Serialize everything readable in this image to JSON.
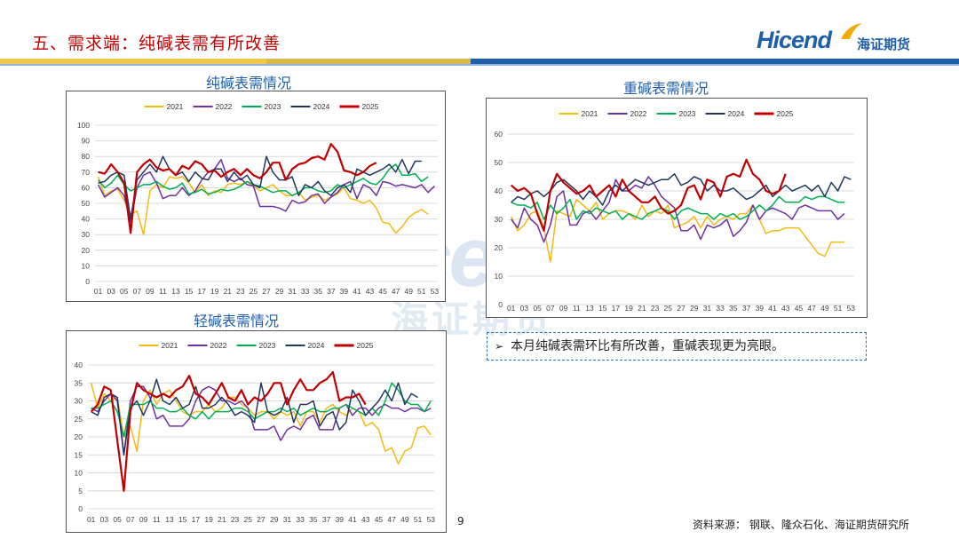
{
  "header": {
    "title": "五、需求端：纯碱表需有所改善",
    "logo_en": "Hicend",
    "logo_cn": "海证期货"
  },
  "watermark": {
    "en": "Hicend",
    "cn": "海证期货"
  },
  "colors": {
    "title_red": "#c00000",
    "brand_blue": "#1f5faa",
    "s2021": "#f4b913",
    "s2022": "#7030a0",
    "s2023": "#00b050",
    "s2024": "#1f3864",
    "s2025": "#c00000"
  },
  "note": {
    "bullet": "➢",
    "text": "本月纯碱表需环比有所改善，重碱表现更为亮眼。"
  },
  "page_number": "9",
  "source": "资料来源：  钢联、隆众石化、海证期货研究所",
  "chart_data": [
    {
      "id": "soda",
      "type": "line",
      "title": "纯碱表需情况",
      "ylim": [
        0,
        100
      ],
      "yticks": [
        0,
        10,
        20,
        30,
        40,
        50,
        60,
        70,
        80,
        90,
        100
      ],
      "x": [
        "01",
        "02",
        "03",
        "04",
        "05",
        "06",
        "07",
        "08",
        "09",
        "10",
        "11",
        "12",
        "13",
        "14",
        "15",
        "16",
        "17",
        "18",
        "19",
        "20",
        "21",
        "22",
        "23",
        "24",
        "25",
        "26",
        "27",
        "28",
        "29",
        "30",
        "31",
        "32",
        "33",
        "34",
        "35",
        "36",
        "37",
        "38",
        "39",
        "40",
        "41",
        "42",
        "43",
        "44",
        "45",
        "46",
        "47",
        "48",
        "49",
        "50",
        "51",
        "52",
        "53"
      ],
      "xtick_every": 2,
      "series": [
        {
          "name": "2021",
          "color": "#f4b913",
          "values": [
            67,
            55,
            58,
            59,
            52,
            43,
            45,
            30,
            58,
            62,
            60,
            67,
            66,
            67,
            63,
            57,
            62,
            55,
            58,
            57,
            62,
            63,
            62,
            64,
            61,
            58,
            60,
            62,
            58,
            55,
            55,
            57,
            52,
            54,
            55,
            52,
            54,
            56,
            60,
            53,
            52,
            50,
            52,
            47,
            38,
            37,
            31,
            35,
            41,
            44,
            46,
            43,
            null
          ]
        },
        {
          "name": "2022",
          "color": "#7030a0",
          "values": [
            62,
            54,
            57,
            60,
            55,
            38,
            60,
            68,
            70,
            63,
            53,
            55,
            55,
            60,
            55,
            58,
            65,
            70,
            72,
            78,
            66,
            64,
            66,
            62,
            61,
            48,
            48,
            48,
            47,
            45,
            52,
            50,
            51,
            55,
            56,
            50,
            54,
            57,
            62,
            64,
            53,
            62,
            60,
            55,
            64,
            63,
            61,
            62,
            61,
            60,
            62,
            57,
            61
          ]
        },
        {
          "name": "2023",
          "color": "#00b050",
          "values": [
            65,
            60,
            63,
            68,
            62,
            58,
            60,
            62,
            62,
            64,
            61,
            59,
            60,
            63,
            56,
            57,
            59,
            56,
            57,
            59,
            58,
            59,
            61,
            64,
            62,
            61,
            59,
            57,
            58,
            58,
            55,
            57,
            60,
            60,
            58,
            57,
            58,
            62,
            60,
            62,
            64,
            66,
            63,
            62,
            66,
            72,
            75,
            68,
            68,
            69,
            64,
            67,
            null
          ]
        },
        {
          "name": "2024",
          "color": "#1f3864",
          "values": [
            63,
            64,
            68,
            70,
            68,
            40,
            65,
            70,
            75,
            70,
            80,
            72,
            68,
            70,
            64,
            70,
            66,
            65,
            72,
            72,
            64,
            70,
            65,
            68,
            62,
            60,
            80,
            70,
            65,
            65,
            67,
            55,
            62,
            60,
            64,
            58,
            55,
            60,
            62,
            57,
            72,
            70,
            68,
            70,
            72,
            75,
            70,
            78,
            69,
            77,
            77,
            null,
            null
          ]
        },
        {
          "name": "2025",
          "color": "#c00000",
          "values": [
            70,
            69,
            75,
            70,
            63,
            31,
            70,
            75,
            78,
            73,
            71,
            72,
            68,
            74,
            72,
            77,
            75,
            70,
            71,
            67,
            70,
            72,
            68,
            72,
            68,
            66,
            70,
            76,
            76,
            65,
            72,
            75,
            76,
            79,
            80,
            78,
            88,
            83,
            71,
            70,
            68,
            70,
            74,
            76,
            null,
            null,
            null,
            null,
            null,
            null,
            null,
            null,
            null
          ]
        }
      ]
    },
    {
      "id": "heavy",
      "type": "line",
      "title": "重碱表需情况",
      "ylim": [
        0,
        60
      ],
      "yticks": [
        0,
        10,
        20,
        30,
        40,
        50,
        60
      ],
      "x": [
        "01",
        "02",
        "03",
        "04",
        "05",
        "06",
        "07",
        "08",
        "09",
        "10",
        "11",
        "12",
        "13",
        "14",
        "15",
        "16",
        "17",
        "18",
        "19",
        "20",
        "21",
        "22",
        "23",
        "24",
        "25",
        "26",
        "27",
        "28",
        "29",
        "30",
        "31",
        "32",
        "33",
        "34",
        "35",
        "36",
        "37",
        "38",
        "39",
        "40",
        "41",
        "42",
        "43",
        "44",
        "45",
        "46",
        "47",
        "48",
        "49",
        "50",
        "51",
        "52",
        "53"
      ],
      "xtick_every": 2,
      "series": [
        {
          "name": "2021",
          "color": "#f4b913",
          "values": [
            31,
            26,
            28,
            32,
            33,
            27,
            15,
            33,
            32,
            31,
            37,
            35,
            33,
            36,
            30,
            32,
            33,
            33,
            32,
            30,
            35,
            31,
            33,
            32,
            35,
            27,
            28,
            29,
            31,
            27,
            31,
            28,
            30,
            31,
            30,
            32,
            32,
            35,
            30,
            25,
            26,
            26,
            27,
            27,
            27,
            24,
            21,
            18,
            17,
            22,
            22,
            22,
            null
          ]
        },
        {
          "name": "2022",
          "color": "#7030a0",
          "values": [
            30,
            27,
            34,
            30,
            28,
            22,
            28,
            38,
            40,
            28,
            28,
            32,
            33,
            30,
            33,
            36,
            44,
            40,
            40,
            42,
            41,
            45,
            42,
            38,
            36,
            34,
            26,
            26,
            28,
            23,
            28,
            27,
            28,
            30,
            24,
            26,
            29,
            35,
            30,
            33,
            34,
            33,
            32,
            30,
            34,
            35,
            34,
            33,
            33,
            33,
            30,
            32,
            null
          ]
        },
        {
          "name": "2023",
          "color": "#00b050",
          "values": [
            36,
            35,
            35,
            34,
            36,
            30,
            35,
            32,
            34,
            37,
            30,
            33,
            32,
            34,
            33,
            32,
            33,
            30,
            32,
            31,
            30,
            32,
            33,
            34,
            33,
            30,
            33,
            34,
            33,
            32,
            32,
            30,
            32,
            31,
            32,
            30,
            31,
            33,
            35,
            33,
            35,
            38,
            36,
            36,
            36,
            38,
            37,
            38,
            38,
            37,
            36,
            36,
            null
          ]
        },
        {
          "name": "2024",
          "color": "#1f3864",
          "values": [
            36,
            38,
            37,
            39,
            40,
            38,
            40,
            43,
            44,
            42,
            40,
            37,
            40,
            38,
            35,
            40,
            42,
            40,
            42,
            44,
            43,
            42,
            43,
            44,
            44,
            46,
            42,
            43,
            45,
            44,
            40,
            42,
            40,
            40,
            41,
            39,
            37,
            38,
            40,
            42,
            38,
            40,
            42,
            40,
            41,
            42,
            40,
            42,
            38,
            43,
            40,
            45,
            44
          ]
        },
        {
          "name": "2025",
          "color": "#c00000",
          "values": [
            42,
            40,
            41,
            39,
            32,
            26,
            40,
            46,
            43,
            41,
            39,
            40,
            42,
            38,
            40,
            42,
            38,
            44,
            40,
            38,
            36,
            36,
            38,
            34,
            32,
            33,
            35,
            41,
            42,
            37,
            44,
            43,
            38,
            45,
            46,
            45,
            51,
            46,
            44,
            40,
            39,
            40,
            46,
            null,
            null,
            null,
            null,
            null,
            null,
            null,
            null,
            null,
            null
          ]
        }
      ]
    },
    {
      "id": "light",
      "type": "line",
      "title": "轻碱表需情况",
      "ylim": [
        0,
        40
      ],
      "yticks": [
        0,
        5,
        10,
        15,
        20,
        25,
        30,
        35,
        40
      ],
      "x": [
        "01",
        "02",
        "03",
        "04",
        "05",
        "06",
        "07",
        "08",
        "09",
        "10",
        "11",
        "12",
        "13",
        "14",
        "15",
        "16",
        "17",
        "18",
        "19",
        "20",
        "21",
        "22",
        "23",
        "24",
        "25",
        "26",
        "27",
        "28",
        "29",
        "30",
        "31",
        "32",
        "33",
        "34",
        "35",
        "36",
        "37",
        "38",
        "39",
        "40",
        "41",
        "42",
        "43",
        "44",
        "45",
        "46",
        "47",
        "48",
        "49",
        "50",
        "51",
        "52",
        "53"
      ],
      "xtick_every": 2,
      "series": [
        {
          "name": "2021",
          "color": "#f4b913",
          "values": [
            35,
            28,
            32,
            30,
            31,
            20,
            23,
            16,
            30,
            33,
            29,
            32,
            33,
            30,
            27,
            26,
            27,
            27,
            29,
            27,
            28,
            31,
            31,
            29,
            28,
            26,
            27,
            27,
            25,
            27,
            26,
            27,
            23,
            27,
            27,
            24,
            28,
            29,
            27,
            26,
            28,
            27,
            23,
            24,
            22,
            16,
            17,
            12.5,
            16,
            17,
            22.5,
            23,
            20.5
          ]
        },
        {
          "name": "2022",
          "color": "#7030a0",
          "values": [
            28,
            27,
            30,
            32,
            30,
            15,
            30,
            34,
            34,
            31,
            25,
            26,
            23,
            23,
            23,
            25,
            30,
            33,
            34,
            33,
            30,
            30,
            29,
            30,
            28,
            22,
            22,
            22,
            23,
            19,
            22,
            23,
            22,
            25,
            26,
            22,
            22,
            22,
            28,
            29,
            26,
            28,
            28,
            26,
            28,
            29,
            28,
            28,
            27,
            28,
            28,
            27,
            28
          ]
        },
        {
          "name": "2023",
          "color": "#00b050",
          "values": [
            28,
            28,
            29,
            30,
            27,
            20,
            29,
            29,
            29,
            30,
            28,
            28,
            27,
            27,
            28,
            26,
            25,
            27,
            25,
            27,
            27,
            27,
            28,
            28,
            27,
            25,
            26,
            27,
            27,
            28,
            27,
            28,
            26,
            27,
            28,
            27,
            27,
            28,
            28,
            29,
            28,
            27,
            26,
            28,
            26,
            30,
            35,
            33,
            30,
            29,
            29,
            27,
            30
          ]
        },
        {
          "name": "2024",
          "color": "#1f3864",
          "values": [
            27,
            26,
            31,
            32,
            31,
            15,
            28,
            30,
            26,
            30,
            36,
            30,
            29,
            31,
            28,
            29,
            34,
            28,
            28,
            29,
            31,
            29,
            26,
            27,
            26,
            24,
            35,
            27,
            26,
            27,
            31,
            24,
            29,
            29,
            30,
            23,
            26,
            27,
            22,
            24,
            33,
            30,
            26,
            28,
            30,
            33,
            30,
            35,
            29,
            32,
            31,
            null,
            null
          ]
        },
        {
          "name": "2025",
          "color": "#c00000",
          "values": [
            27,
            29,
            34,
            33,
            19,
            5,
            27,
            35,
            33,
            32,
            31,
            32,
            31,
            33,
            34,
            37,
            32,
            31,
            29,
            32,
            35,
            31,
            30,
            33,
            29,
            31,
            30,
            32,
            35,
            35,
            29,
            33,
            36,
            33,
            33,
            35,
            36,
            38,
            30,
            31,
            31,
            32,
            29,
            null,
            null,
            null,
            null,
            null,
            null,
            null,
            null,
            null,
            null
          ]
        }
      ]
    }
  ]
}
